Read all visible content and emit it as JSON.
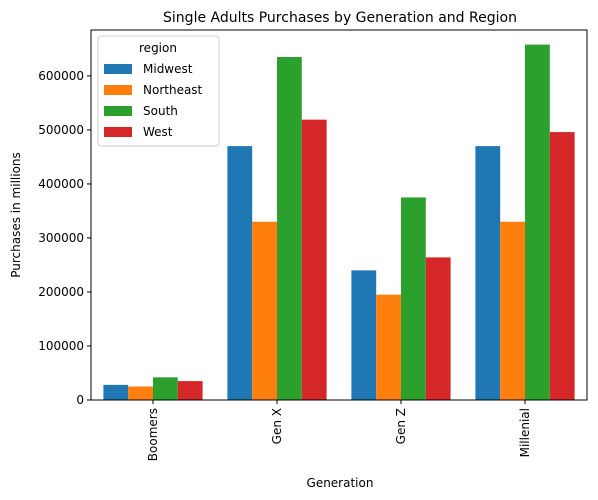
{
  "chart_data": {
    "type": "bar",
    "title": "Single Adults Purchases by Generation and Region",
    "xlabel": "Generation",
    "ylabel": "Purchases in millions",
    "categories": [
      "Boomers",
      "Gen X",
      "Gen Z",
      "Millenial"
    ],
    "series": [
      {
        "name": "Midwest",
        "color": "#1f77b4",
        "values": [
          28000,
          470000,
          240000,
          470000
        ]
      },
      {
        "name": "Northeast",
        "color": "#ff7f0e",
        "values": [
          25000,
          330000,
          195000,
          330000
        ]
      },
      {
        "name": "South",
        "color": "#2ca02c",
        "values": [
          42000,
          635000,
          375000,
          658000
        ]
      },
      {
        "name": "West",
        "color": "#d62728",
        "values": [
          35000,
          519000,
          264000,
          496000
        ]
      }
    ],
    "ylim": [
      0,
      685000
    ],
    "yticks": [
      0,
      100000,
      200000,
      300000,
      400000,
      500000,
      600000
    ],
    "ytick_labels": [
      "0",
      "100000",
      "200000",
      "300000",
      "400000",
      "500000",
      "600000"
    ],
    "legend": {
      "title": "region",
      "position": "top-left"
    },
    "grid": false
  }
}
